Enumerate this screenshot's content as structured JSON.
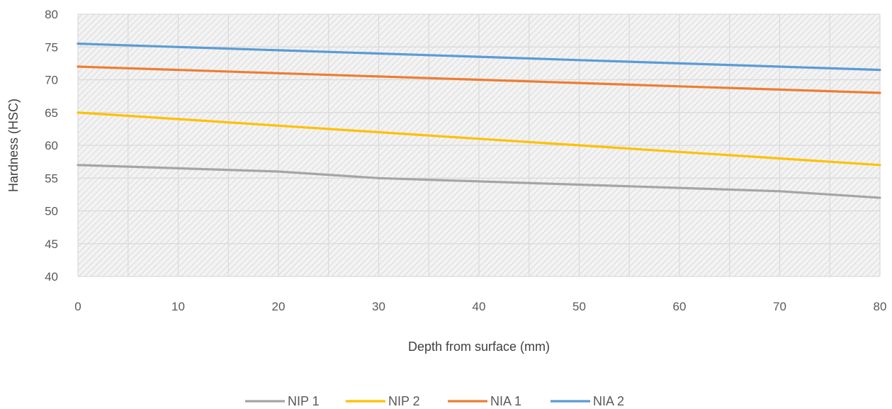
{
  "chart_data": {
    "type": "line",
    "title": "",
    "xlabel": "Depth from surface (mm)",
    "ylabel": "Hardness (HSC)",
    "xlim": [
      0,
      80
    ],
    "ylim": [
      40,
      80
    ],
    "x_ticks": [
      "0",
      "10",
      "20",
      "30",
      "40",
      "50",
      "60",
      "70",
      "80"
    ],
    "y_ticks": [
      "40",
      "45",
      "50",
      "55",
      "60",
      "65",
      "70",
      "75",
      "80"
    ],
    "grid": true,
    "legend_position": "bottom",
    "x": [
      0,
      10,
      20,
      30,
      40,
      50,
      60,
      70,
      80
    ],
    "series": [
      {
        "name": "NIP 1",
        "color": "#a5a5a5",
        "values": [
          57,
          56.5,
          56,
          55,
          54.5,
          54,
          53.5,
          53,
          52
        ]
      },
      {
        "name": "NIP 2",
        "color": "#ffc000",
        "values": [
          65,
          64,
          63,
          62,
          61,
          60,
          59,
          58,
          57
        ]
      },
      {
        "name": "NIA 1",
        "color": "#ed7d31",
        "values": [
          72,
          71.5,
          71,
          70.5,
          70,
          69.5,
          69,
          68.5,
          68
        ]
      },
      {
        "name": "NIA 2",
        "color": "#5b9bd5",
        "values": [
          75.5,
          75,
          74.5,
          74,
          73.5,
          73,
          72.5,
          72,
          71.5
        ]
      }
    ]
  }
}
